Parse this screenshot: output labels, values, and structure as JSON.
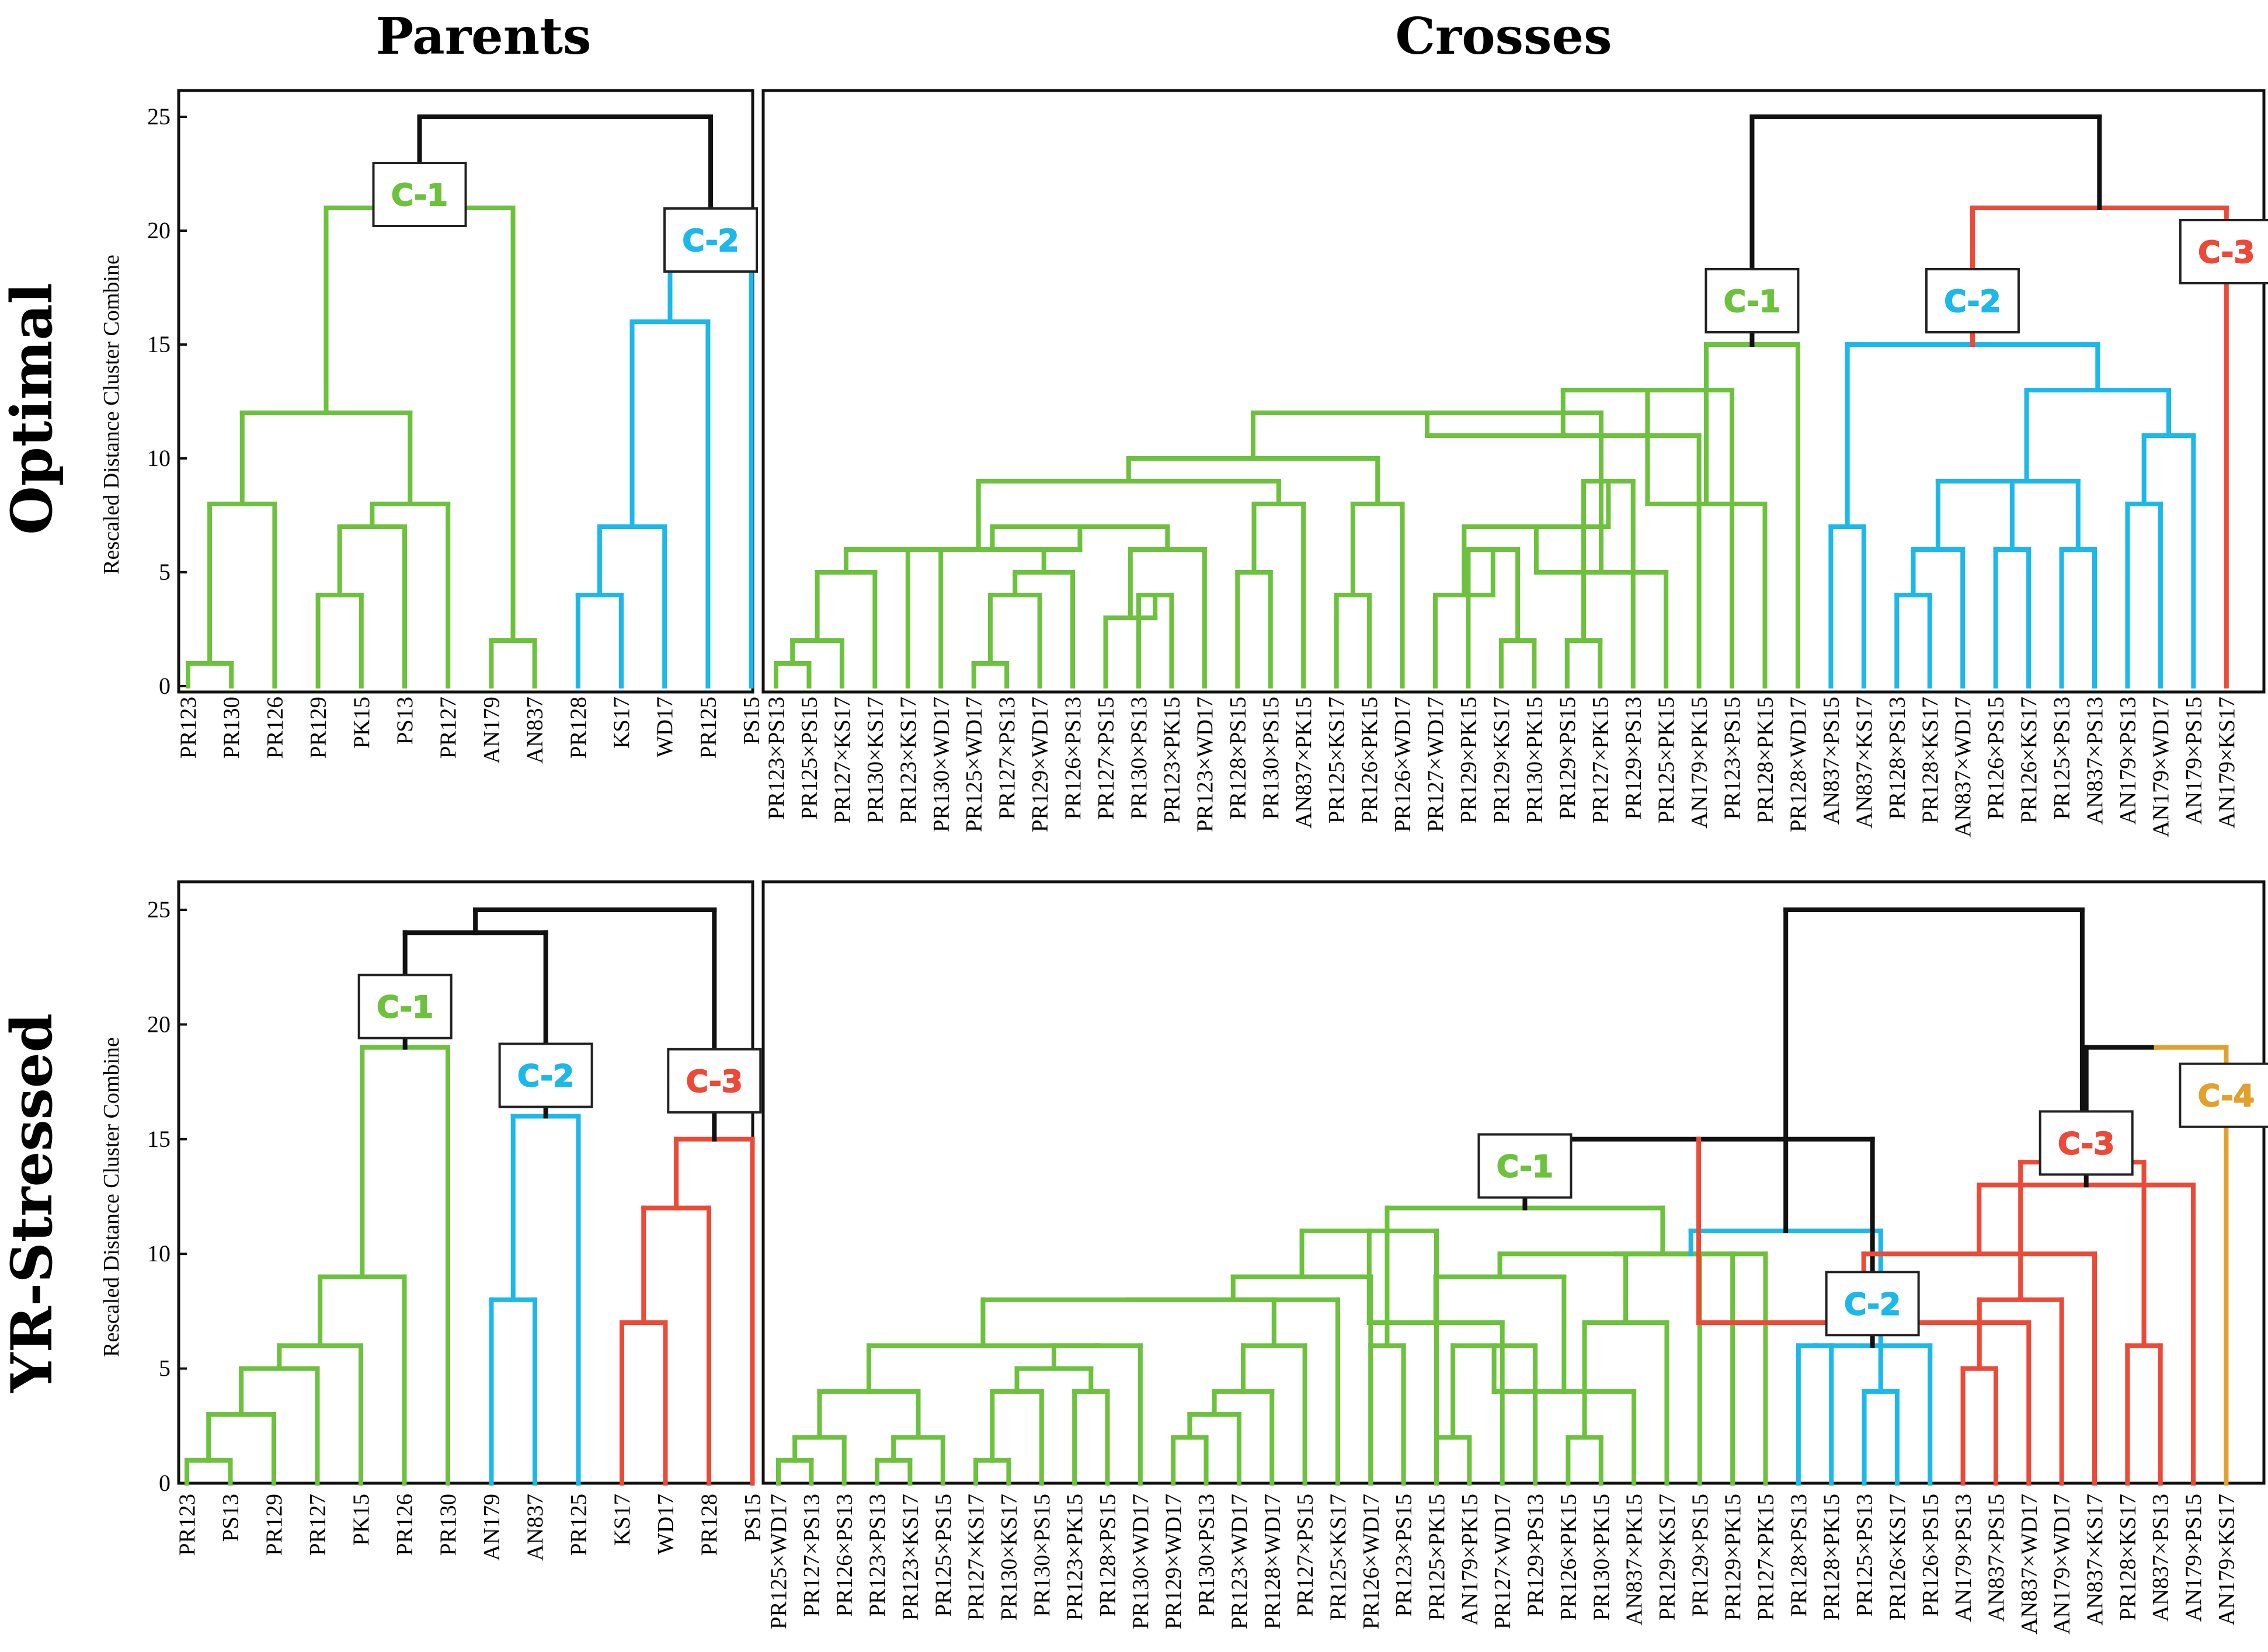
{
  "column_headers": {
    "parents": "Parents",
    "crosses": "Crosses"
  },
  "row_headers": {
    "optimal": "Optimal",
    "stressed": "YR-Stressed"
  },
  "axis_title": "Rescaled Distance Cluster Combine",
  "y_ticks": [
    "0",
    "5",
    "10",
    "15",
    "20",
    "25"
  ],
  "colors": {
    "green": "#6cc13d",
    "blue": "#1cb8ea",
    "red": "#ec4a37",
    "gold": "#e2a12c",
    "black": "#111111"
  },
  "cluster_labels": {
    "opt_par": [
      "C-1",
      "C-2"
    ],
    "opt_cross": [
      "C-1",
      "C-2",
      "C-3"
    ],
    "str_par": [
      "C-1",
      "C-2",
      "C-3"
    ],
    "str_cross": [
      "C-1",
      "C-2",
      "C-3",
      "C-4"
    ]
  },
  "leaves": {
    "opt_par": [
      "PR123",
      "PR130",
      "PR126",
      "PR129",
      "PK15",
      "PS13",
      "PR127",
      "AN179",
      "AN837",
      "PR128",
      "KS17",
      "WD17",
      "PR125",
      "PS15"
    ],
    "opt_cross": [
      "PR123×PS13",
      "PR125×PS15",
      "PR127×KS17",
      "PR130×KS17",
      "PR123×KS17",
      "PR130×WD17",
      "PR125×WD17",
      "PR127×PS13",
      "PR129×WD17",
      "PR126×PS13",
      "PR127×PS15",
      "PR130×PS13",
      "PR123×PK15",
      "PR123×WD17",
      "PR128×PS15",
      "PR130×PS15",
      "AN837×PK15",
      "PR125×KS17",
      "PR126×PK15",
      "PR126×WD17",
      "PR127×WD17",
      "PR129×PK15",
      "PR129×KS17",
      "PR130×PK15",
      "PR129×PS15",
      "PR127×PK15",
      "PR129×PS13",
      "PR125×PK15",
      "AN179×PK15",
      "PR123×PS15",
      "PR128×PK15",
      "PR128×WD17",
      "AN837×PS15",
      "AN837×KS17",
      "PR128×PS13",
      "PR128×KS17",
      "AN837×WD17",
      "PR126×PS15",
      "PR126×KS17",
      "PR125×PS13",
      "AN837×PS13",
      "AN179×PS13",
      "AN179×WD17",
      "AN179×PS15",
      "AN179×KS17"
    ],
    "str_par": [
      "PR123",
      "PS13",
      "PR129",
      "PR127",
      "PK15",
      "PR126",
      "PR130",
      "AN179",
      "AN837",
      "PR125",
      "KS17",
      "WD17",
      "PR128",
      "PS15"
    ],
    "str_cross": [
      "PR125×WD17",
      "PR127×PS13",
      "PR126×PS13",
      "PR123×PS13",
      "PR123×KS17",
      "PR125×PS15",
      "PR127×KS17",
      "PR130×KS17",
      "PR130×PS15",
      "PR123×PK15",
      "PR128×PS15",
      "PR130×WD17",
      "PR129×WD17",
      "PR130×PS13",
      "PR123×WD17",
      "PR128×WD17",
      "PR127×PS15",
      "PR125×KS17",
      "PR126×WD17",
      "PR123×PS15",
      "PR125×PK15",
      "AN179×PK15",
      "PR127×WD17",
      "PR129×PS13",
      "PR126×PK15",
      "PR130×PK15",
      "AN837×PK15",
      "PR129×KS17",
      "PR129×PS15",
      "PR129×PK15",
      "PR127×PK15",
      "PR128×PS13",
      "PR128×PK15",
      "PR125×PS13",
      "PR126×KS17",
      "PR126×PS15",
      "AN179×PS13",
      "AN837×PS15",
      "AN837×WD17",
      "AN179×WD17",
      "AN837×KS17",
      "PR128×KS17",
      "AN837×PS13",
      "AN179×PS15",
      "AN179×KS17"
    ]
  },
  "chart_data": [
    {
      "type": "dendrogram",
      "id": "opt_par",
      "title": "Parents",
      "row": "Optimal",
      "ylabel": "Rescaled Distance Cluster Combine",
      "ylim": [
        0,
        25
      ],
      "merges": [
        {
          "l": 0,
          "r": 1,
          "h": 1,
          "c": "green"
        },
        {
          "l": 14,
          "r": 2,
          "h": 8,
          "c": "green"
        },
        {
          "l": 3,
          "r": 4,
          "h": 4,
          "c": "green"
        },
        {
          "l": 16,
          "r": 5,
          "h": 7,
          "c": "green"
        },
        {
          "l": 17,
          "r": 6,
          "h": 8,
          "c": "green"
        },
        {
          "l": 15,
          "r": 18,
          "h": 12,
          "c": "green"
        },
        {
          "l": 7,
          "r": 8,
          "h": 2,
          "c": "green"
        },
        {
          "l": 19,
          "r": 20,
          "h": 21,
          "c": "green"
        },
        {
          "l": 9,
          "r": 10,
          "h": 4,
          "c": "blue"
        },
        {
          "l": 22,
          "r": 11,
          "h": 7,
          "c": "blue"
        },
        {
          "l": 23,
          "r": 12,
          "h": 16,
          "c": "blue"
        },
        {
          "l": 24,
          "r": 13,
          "h": 19,
          "c": "blue"
        },
        {
          "l": 21,
          "r": 25,
          "h": 25,
          "c": "black"
        }
      ],
      "cluster_boxes": [
        {
          "node": 21,
          "label": "C-1",
          "c": "green",
          "dy": -23
        },
        {
          "node": 25,
          "label": "C-2",
          "c": "blue",
          "dy": -23
        }
      ]
    },
    {
      "type": "dendrogram",
      "id": "opt_cross",
      "title": "Crosses",
      "row": "Optimal",
      "ylim": [
        0,
        25
      ],
      "merges": [
        {
          "l": 0,
          "r": 1,
          "h": 1,
          "c": "green"
        },
        {
          "l": 45,
          "r": 2,
          "h": 2,
          "c": "green"
        },
        {
          "l": 46,
          "r": 3,
          "h": 5,
          "c": "green"
        },
        {
          "l": 47,
          "r": 4,
          "h": 6,
          "c": "green"
        },
        {
          "l": 6,
          "r": 7,
          "h": 1,
          "c": "green"
        },
        {
          "l": 49,
          "r": 8,
          "h": 4,
          "c": "green"
        },
        {
          "l": 50,
          "r": 9,
          "h": 5,
          "c": "green"
        },
        {
          "l": 5,
          "r": 51,
          "h": 6,
          "c": "green"
        },
        {
          "l": 11,
          "r": 12,
          "h": 4,
          "c": "green"
        },
        {
          "l": 10,
          "r": 53,
          "h": 3,
          "c": "green"
        },
        {
          "l": 54,
          "r": 13,
          "h": 6,
          "c": "green"
        },
        {
          "l": 52,
          "r": 55,
          "h": 7,
          "c": "green"
        },
        {
          "l": 48,
          "r": 56,
          "h": 6,
          "c": "green"
        },
        {
          "l": 14,
          "r": 15,
          "h": 5,
          "c": "green"
        },
        {
          "l": 58,
          "r": 16,
          "h": 8,
          "c": "green"
        },
        {
          "l": 57,
          "r": 59,
          "h": 9,
          "c": "green"
        },
        {
          "l": 17,
          "r": 18,
          "h": 4,
          "c": "green"
        },
        {
          "l": 61,
          "r": 19,
          "h": 8,
          "c": "green"
        },
        {
          "l": 60,
          "r": 62,
          "h": 10,
          "c": "green"
        },
        {
          "l": 22,
          "r": 23,
          "h": 2,
          "c": "green"
        },
        {
          "l": 21,
          "r": 64,
          "h": 6,
          "c": "green"
        },
        {
          "l": 20,
          "r": 65,
          "h": 4,
          "c": "green"
        },
        {
          "l": 24,
          "r": 25,
          "h": 2,
          "c": "green"
        },
        {
          "l": 67,
          "r": 26,
          "h": 9,
          "c": "green"
        },
        {
          "l": 66,
          "r": 68,
          "h": 7,
          "c": "green"
        },
        {
          "l": 69,
          "r": 27,
          "h": 5,
          "c": "green"
        },
        {
          "l": 63,
          "r": 70,
          "h": 12,
          "c": "green"
        },
        {
          "l": 71,
          "r": 28,
          "h": 11,
          "c": "green"
        },
        {
          "l": 72,
          "r": 29,
          "h": 13,
          "c": "green"
        },
        {
          "l": 73,
          "r": 30,
          "h": 8,
          "c": "green"
        },
        {
          "l": 74,
          "r": 31,
          "h": 15,
          "c": "green"
        },
        {
          "l": 34,
          "r": 35,
          "h": 4,
          "c": "blue"
        },
        {
          "l": 76,
          "r": 36,
          "h": 6,
          "c": "blue"
        },
        {
          "l": 37,
          "r": 38,
          "h": 6,
          "c": "blue"
        },
        {
          "l": 39,
          "r": 40,
          "h": 6,
          "c": "blue"
        },
        {
          "l": 77,
          "r": 78,
          "h": 9,
          "c": "blue"
        },
        {
          "l": 80,
          "r": 79,
          "h": 9,
          "c": "blue"
        },
        {
          "l": 41,
          "r": 42,
          "h": 8,
          "c": "blue"
        },
        {
          "l": 82,
          "r": 43,
          "h": 11,
          "c": "blue"
        },
        {
          "l": 81,
          "r": 83,
          "h": 13,
          "c": "blue"
        },
        {
          "l": 32,
          "r": 33,
          "h": 7,
          "c": "blue"
        },
        {
          "l": 85,
          "r": 84,
          "h": 15,
          "c": "blue"
        },
        {
          "l": 86,
          "r": 44,
          "h": 21,
          "c": "red",
          "rc": "red"
        },
        {
          "l": 75,
          "r": 87,
          "h": 25,
          "c": "black"
        }
      ],
      "cluster_boxes": [
        {
          "node": 75,
          "label": "C-1",
          "c": "green",
          "dy": -75
        },
        {
          "node": 86,
          "label": "C-2",
          "c": "blue",
          "dy": -75
        },
        {
          "node": 44,
          "label": "C-3",
          "c": "red",
          "dy": -75,
          "useTop": true
        }
      ]
    },
    {
      "type": "dendrogram",
      "id": "str_par",
      "title": "Parents",
      "row": "YR-Stressed",
      "ylabel": "Rescaled Distance Cluster Combine",
      "ylim": [
        0,
        25
      ],
      "merges": [
        {
          "l": 0,
          "r": 1,
          "h": 1,
          "c": "green"
        },
        {
          "l": 14,
          "r": 2,
          "h": 3,
          "c": "green"
        },
        {
          "l": 15,
          "r": 3,
          "h": 5,
          "c": "green"
        },
        {
          "l": 16,
          "r": 4,
          "h": 6,
          "c": "green"
        },
        {
          "l": 17,
          "r": 5,
          "h": 9,
          "c": "green"
        },
        {
          "l": 18,
          "r": 6,
          "h": 19,
          "c": "green"
        },
        {
          "l": 7,
          "r": 8,
          "h": 8,
          "c": "blue"
        },
        {
          "l": 20,
          "r": 9,
          "h": 16,
          "c": "blue"
        },
        {
          "l": 10,
          "r": 11,
          "h": 7,
          "c": "red"
        },
        {
          "l": 22,
          "r": 12,
          "h": 12,
          "c": "red"
        },
        {
          "l": 23,
          "r": 13,
          "h": 15,
          "c": "red"
        },
        {
          "l": 19,
          "r": 21,
          "h": 24,
          "c": "black"
        },
        {
          "l": 25,
          "r": 24,
          "h": 25,
          "c": "black"
        }
      ],
      "cluster_boxes": [
        {
          "node": 19,
          "label": "C-1",
          "c": "green",
          "dy": -70
        },
        {
          "node": 21,
          "label": "C-2",
          "c": "blue",
          "dy": -70
        },
        {
          "node": 24,
          "label": "C-3",
          "c": "red",
          "dy": -100
        }
      ]
    },
    {
      "type": "dendrogram",
      "id": "str_cross",
      "title": "Crosses",
      "row": "YR-Stressed",
      "ylim": [
        0,
        25
      ],
      "merges": [
        {
          "l": 0,
          "r": 1,
          "h": 1,
          "c": "green"
        },
        {
          "l": 45,
          "r": 2,
          "h": 2,
          "c": "green"
        },
        {
          "l": 3,
          "r": 4,
          "h": 1,
          "c": "green"
        },
        {
          "l": 47,
          "r": 5,
          "h": 2,
          "c": "green"
        },
        {
          "l": 46,
          "r": 48,
          "h": 4,
          "c": "green"
        },
        {
          "l": 6,
          "r": 7,
          "h": 1,
          "c": "green"
        },
        {
          "l": 50,
          "r": 8,
          "h": 4,
          "c": "green"
        },
        {
          "l": 9,
          "r": 10,
          "h": 4,
          "c": "green"
        },
        {
          "l": 51,
          "r": 52,
          "h": 5,
          "c": "green"
        },
        {
          "l": 53,
          "r": 11,
          "h": 6,
          "c": "green"
        },
        {
          "l": 49,
          "r": 54,
          "h": 6,
          "c": "green"
        },
        {
          "l": 12,
          "r": 13,
          "h": 2,
          "c": "green"
        },
        {
          "l": 56,
          "r": 14,
          "h": 3,
          "c": "green"
        },
        {
          "l": 57,
          "r": 15,
          "h": 4,
          "c": "green"
        },
        {
          "l": 58,
          "r": 16,
          "h": 6,
          "c": "green"
        },
        {
          "l": 55,
          "r": 59,
          "h": 8,
          "c": "green"
        },
        {
          "l": 60,
          "r": 17,
          "h": 8,
          "c": "green"
        },
        {
          "l": 61,
          "r": 18,
          "h": 9,
          "c": "green"
        },
        {
          "l": 18,
          "r": 19,
          "h": 6,
          "c": "green"
        },
        {
          "l": 62,
          "r": 20,
          "h": 11,
          "c": "green"
        },
        {
          "l": 20,
          "r": 21,
          "h": 2,
          "c": "green"
        },
        {
          "l": 64,
          "r": 22,
          "h": 7,
          "c": "green"
        },
        {
          "l": 65,
          "r": 23,
          "h": 6,
          "c": "green"
        },
        {
          "l": 24,
          "r": 25,
          "h": 2,
          "c": "green"
        },
        {
          "l": 67,
          "r": 26,
          "h": 4,
          "c": "green"
        },
        {
          "l": 68,
          "r": 27,
          "h": 7,
          "c": "green"
        },
        {
          "l": 66,
          "r": 69,
          "h": 9,
          "c": "green"
        },
        {
          "l": 70,
          "r": 28,
          "h": 10,
          "c": "green"
        },
        {
          "l": 71,
          "r": 29,
          "h": 10,
          "c": "green"
        },
        {
          "l": 63,
          "r": 72,
          "h": 12,
          "c": "green"
        },
        {
          "l": 73,
          "r": 30,
          "h": 10,
          "c": "green"
        },
        {
          "l": 31,
          "r": 32,
          "h": 6,
          "c": "blue"
        },
        {
          "l": 33,
          "r": 34,
          "h": 4,
          "c": "blue"
        },
        {
          "l": 76,
          "r": 35,
          "h": 6,
          "c": "blue"
        },
        {
          "l": 75,
          "r": 77,
          "h": 11,
          "c": "blue"
        },
        {
          "l": 74,
          "r": 78,
          "h": 15,
          "c": "black"
        },
        {
          "l": 36,
          "r": 37,
          "h": 5,
          "c": "red"
        },
        {
          "l": 80,
          "r": 38,
          "h": 7,
          "c": "red"
        },
        {
          "l": 81,
          "r": 39,
          "h": 8,
          "c": "red"
        },
        {
          "l": 82,
          "r": 40,
          "h": 10,
          "c": "red"
        },
        {
          "l": 41,
          "r": 42,
          "h": 6,
          "c": "red"
        },
        {
          "l": 84,
          "r": 43,
          "h": 13,
          "c": "red"
        },
        {
          "l": 83,
          "r": 85,
          "h": 14,
          "c": "red"
        },
        {
          "l": 86,
          "r": 44,
          "h": 19,
          "c": "black",
          "rc": "gold"
        },
        {
          "l": 79,
          "r": 87,
          "h": 25,
          "c": "black"
        }
      ],
      "cluster_boxes": [
        {
          "node": 74,
          "label": "C-1",
          "c": "green",
          "dy": -72
        },
        {
          "node": 78,
          "label": "C-2",
          "c": "blue",
          "dy": -72
        },
        {
          "node": 86,
          "label": "C-3",
          "c": "red",
          "dy": -72
        },
        {
          "node": 44,
          "label": "C-4",
          "c": "gold",
          "dy": -82,
          "useTop": true
        }
      ]
    }
  ]
}
